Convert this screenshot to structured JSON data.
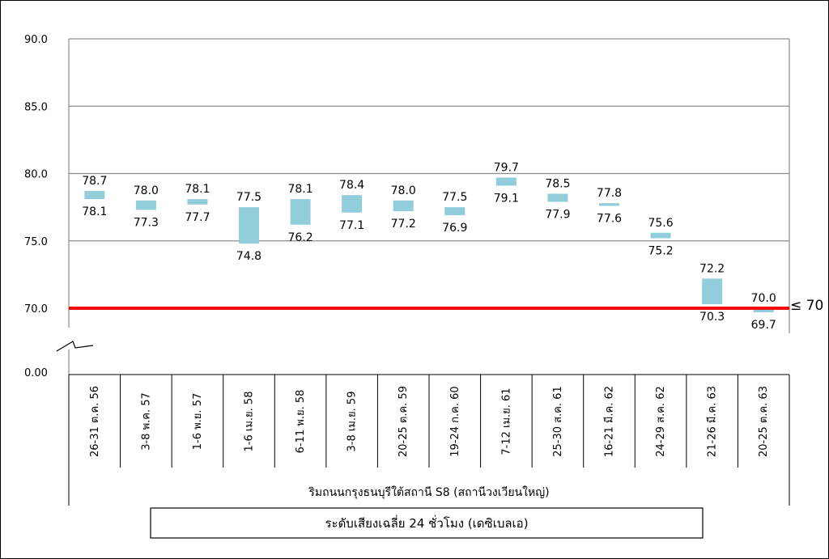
{
  "chart_data": {
    "type": "bar",
    "categories": [
      "26-31 ต.ค. 56",
      "3-8 พ.ค. 57",
      "1-6 พ.ย. 57",
      "1-6 เม.ย. 58",
      "6-11 พ.ย. 58",
      "3-8 เม.ย. 59",
      "20-25 ต.ค. 59",
      "19-24 ก.ค. 60",
      "7-12 เม.ย. 61",
      "25-30 ส.ค. 61",
      "16-21 มี.ค. 62",
      "24-29 ส.ค. 62",
      "21-26 มี.ค. 63",
      "20-25 ต.ค. 63"
    ],
    "series": [
      {
        "high": [
          78.7,
          78.0,
          78.1,
          77.5,
          78.1,
          78.4,
          78.0,
          77.5,
          79.7,
          78.5,
          77.8,
          75.6,
          72.2,
          70.0
        ],
        "low": [
          78.1,
          77.3,
          77.7,
          74.8,
          76.2,
          77.1,
          77.2,
          76.9,
          79.1,
          77.9,
          77.6,
          75.2,
          70.3,
          69.7
        ],
        "high_labels": [
          "78.7",
          "78.0",
          "78.1",
          "77.5",
          "78.1",
          "78.4",
          "78.0",
          "77.5",
          "79.7",
          "78.5",
          "77.8",
          "75.6",
          "72.2",
          "70.0"
        ],
        "low_labels": [
          "78.1",
          "77.3",
          "77.7",
          "74.8",
          "76.2",
          "77.1",
          "77.2",
          "76.9",
          "79.1",
          "77.9",
          "77.6",
          "75.2",
          "70.3",
          "69.7"
        ]
      }
    ],
    "y_ticks": [
      "90.0",
      "85.0",
      "80.0",
      "75.0",
      "70.0"
    ],
    "y_zero_label": "0.00",
    "ylim": [
      70,
      90
    ],
    "axis_break": true,
    "standard_value": 70,
    "standard_label": "≤ 70",
    "location": "ริมถนนกรุงธนบุรีใต้สถานี S8 (สถานีวงเวียนใหญ่)",
    "caption": "ระดับเสียงเฉลี่ย 24 ชั่วโมง (เดซิเบลเอ)",
    "bar_color": "#92cddc",
    "standard_color": "#ff0000",
    "grid": true
  }
}
